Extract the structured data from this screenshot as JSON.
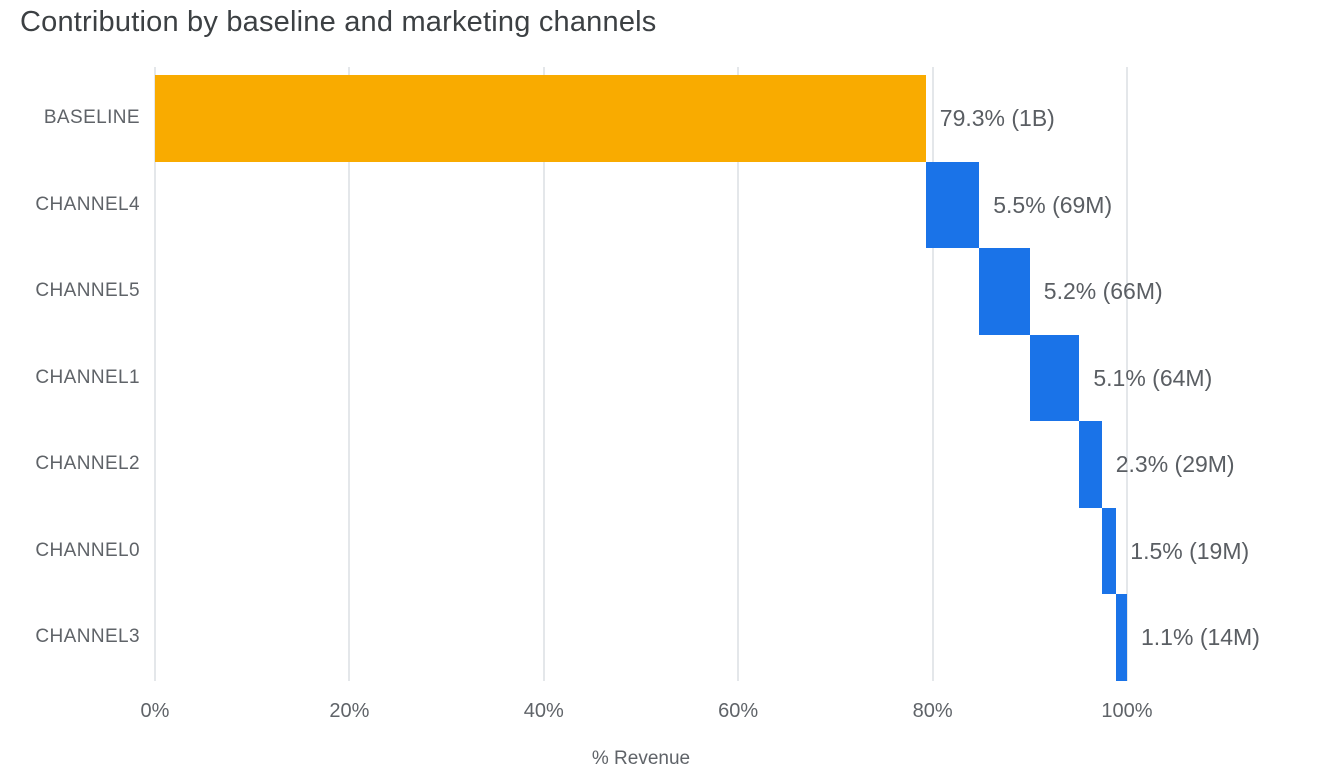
{
  "title": "Contribution by baseline and marketing channels",
  "chart_data": {
    "type": "bar",
    "variant": "waterfall",
    "orientation": "horizontal",
    "title": "Contribution by baseline and marketing channels",
    "xlabel": "% Revenue",
    "xlim": [
      0,
      120
    ],
    "grid": true,
    "legend": "none",
    "xticks": [
      {
        "value": 0,
        "label": "0%"
      },
      {
        "value": 20,
        "label": "20%"
      },
      {
        "value": 40,
        "label": "40%"
      },
      {
        "value": 60,
        "label": "60%"
      },
      {
        "value": 80,
        "label": "80%"
      },
      {
        "value": 100,
        "label": "100%"
      }
    ],
    "categories": [
      "BASELINE",
      "CHANNEL4",
      "CHANNEL5",
      "CHANNEL1",
      "CHANNEL2",
      "CHANNEL0",
      "CHANNEL3"
    ],
    "bars": [
      {
        "category": "BASELINE",
        "start": 0,
        "value": 79.3,
        "end": 79.3,
        "label": "79.3% (1B)",
        "color": "#f9ab00"
      },
      {
        "category": "CHANNEL4",
        "start": 79.3,
        "value": 5.5,
        "end": 84.8,
        "label": "5.5% (69M)",
        "color": "#1a73e8"
      },
      {
        "category": "CHANNEL5",
        "start": 84.8,
        "value": 5.2,
        "end": 90.0,
        "label": "5.2% (66M)",
        "color": "#1a73e8"
      },
      {
        "category": "CHANNEL1",
        "start": 90.0,
        "value": 5.1,
        "end": 95.1,
        "label": "5.1% (64M)",
        "color": "#1a73e8"
      },
      {
        "category": "CHANNEL2",
        "start": 95.1,
        "value": 2.3,
        "end": 97.4,
        "label": "2.3% (29M)",
        "color": "#1a73e8"
      },
      {
        "category": "CHANNEL0",
        "start": 97.4,
        "value": 1.5,
        "end": 98.9,
        "label": "1.5% (19M)",
        "color": "#1a73e8"
      },
      {
        "category": "CHANNEL3",
        "start": 98.9,
        "value": 1.1,
        "end": 100.0,
        "label": "1.1% (14M)",
        "color": "#1a73e8"
      }
    ],
    "colors": {
      "baseline": "#f9ab00",
      "channels": "#1a73e8",
      "grid": "#e4e7ea",
      "text": "#5f6368",
      "title": "#3c4043"
    }
  }
}
